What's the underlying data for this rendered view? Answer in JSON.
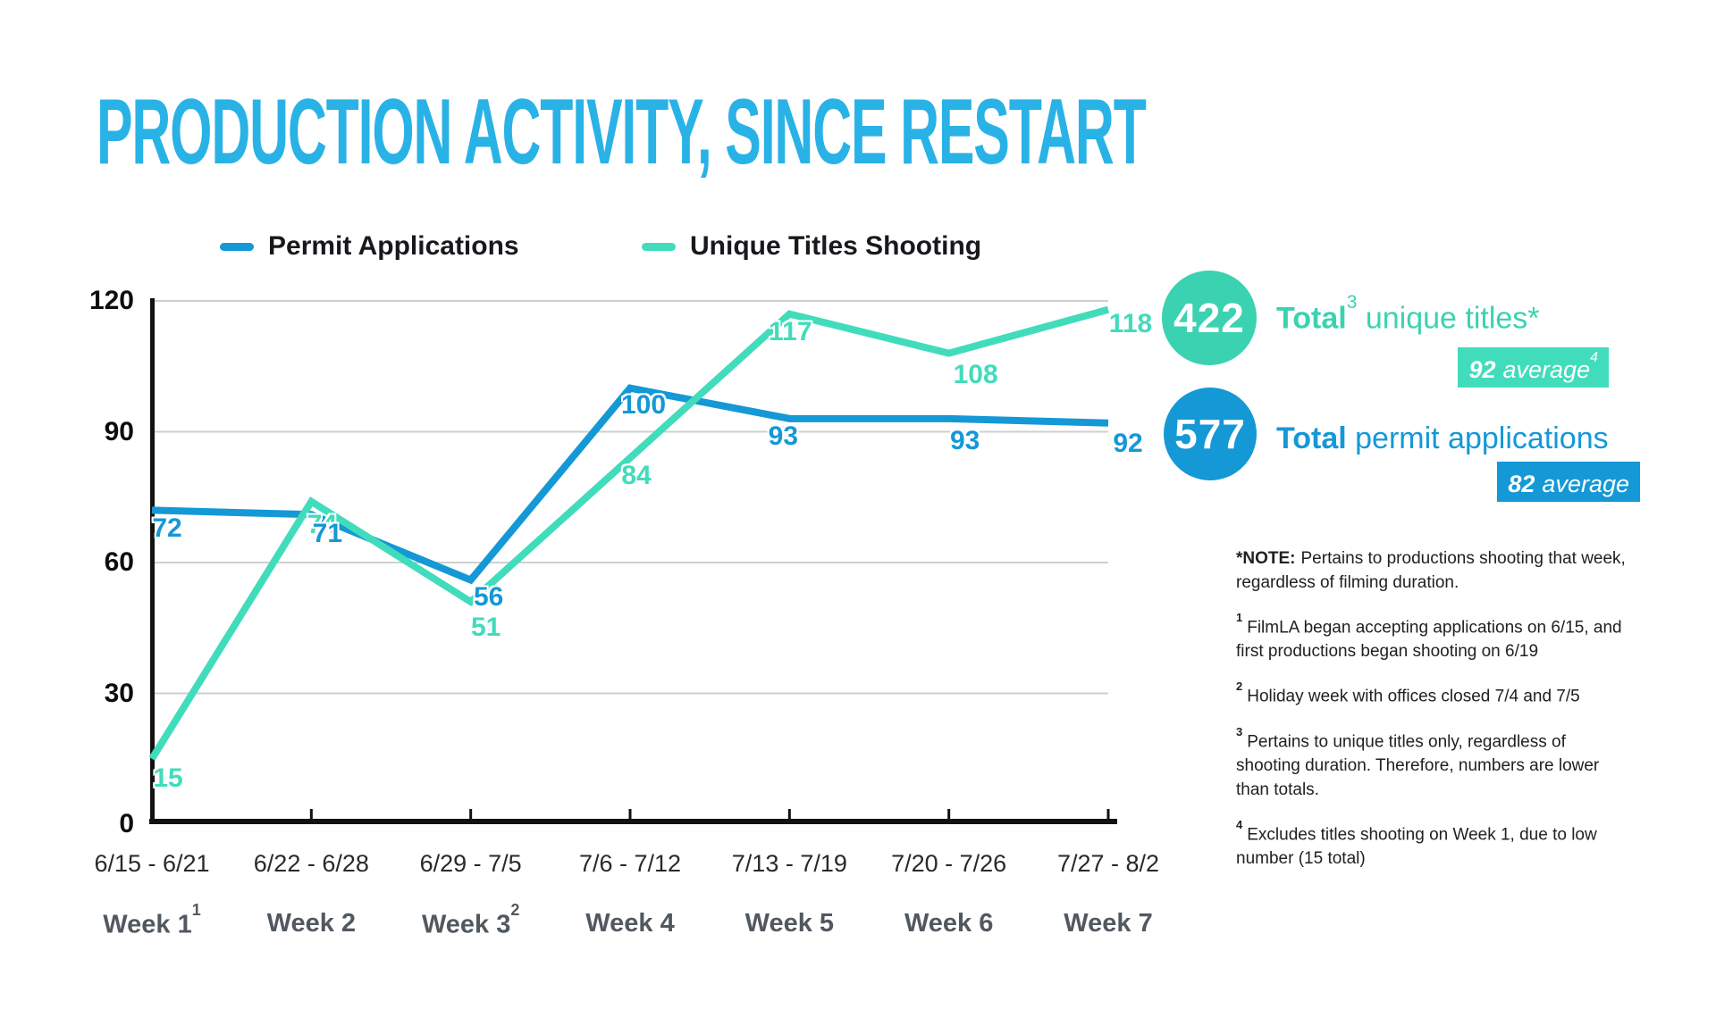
{
  "header": {
    "title_part1": "PRODUCTION ACTIVITY,",
    "title_part2": " SINCE RESTART",
    "title_color": "#29b2e6"
  },
  "chart_data": {
    "type": "line",
    "title": "Production Activity, Since Restart",
    "categories": [
      "6/15 - 6/21",
      "6/22 - 6/28",
      "6/29 - 7/5",
      "7/6 - 7/12",
      "7/13 - 7/19",
      "7/20 - 7/26",
      "7/27 - 8/2"
    ],
    "week_labels": [
      {
        "text": "Week 1",
        "sup": "1"
      },
      {
        "text": "Week 2",
        "sup": ""
      },
      {
        "text": "Week 3",
        "sup": "2"
      },
      {
        "text": "Week 4",
        "sup": ""
      },
      {
        "text": "Week 5",
        "sup": ""
      },
      {
        "text": "Week 6",
        "sup": ""
      },
      {
        "text": "Week 7",
        "sup": ""
      }
    ],
    "series": [
      {
        "name": "Permit Applications",
        "color": "#1598d6",
        "values": [
          72,
          71,
          56,
          100,
          93,
          93,
          92
        ]
      },
      {
        "name": "Unique Titles Shooting",
        "color": "#41dcbb",
        "values": [
          15,
          74,
          51,
          84,
          117,
          108,
          118
        ]
      }
    ],
    "xlabel": "",
    "ylabel": "",
    "ylim": [
      0,
      120
    ],
    "yticks": [
      120,
      90,
      60,
      30,
      0
    ],
    "grid": true,
    "legend_position": "top"
  },
  "totals": {
    "unique": {
      "value": "422",
      "label_bold": "Total",
      "label_sup": "3",
      "label_rest": " unique titles*",
      "avg_value": "92",
      "avg_word": "average",
      "avg_sup": "4",
      "color": "#3bd2b2",
      "badge_color": "#41dcbb"
    },
    "permits": {
      "value": "577",
      "label_bold": "Total",
      "label_sup": "",
      "label_rest": " permit applications",
      "avg_value": "82",
      "avg_word": "average",
      "avg_sup": "",
      "color": "#1598d6",
      "badge_color": "#1598d6"
    }
  },
  "notes": [
    {
      "prefix": "*NOTE:",
      "superscript": false,
      "text": "Pertains to productions shooting that week,\nregardless of filming duration."
    },
    {
      "prefix": "1",
      "superscript": true,
      "text": "FilmLA began accepting applications on 6/15, and\nfirst productions began shooting on 6/19"
    },
    {
      "prefix": "2",
      "superscript": true,
      "text": "Holiday week with offices closed 7/4 and 7/5"
    },
    {
      "prefix": "3",
      "superscript": true,
      "text": "Pertains to unique titles only, regardless of\nshooting duration. Therefore, numbers are lower\nthan totals."
    },
    {
      "prefix": "4",
      "superscript": true,
      "text": "Excludes titles shooting on Week 1, due to low\nnumber (15 total)"
    }
  ]
}
